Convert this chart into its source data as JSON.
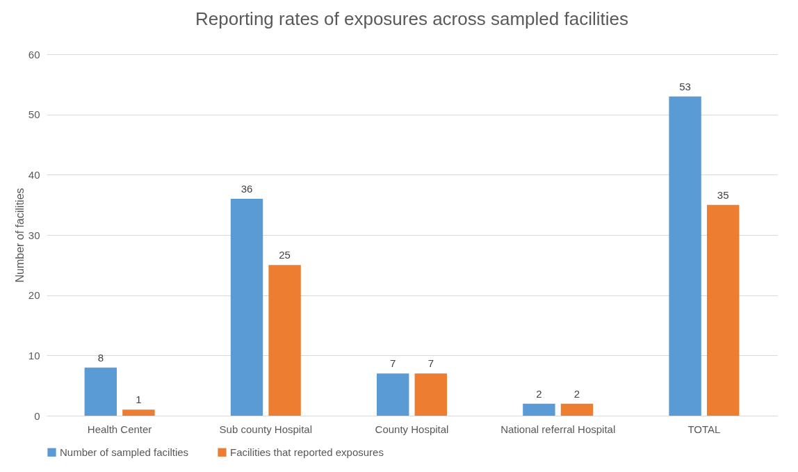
{
  "chart_data": {
    "type": "bar",
    "title": "Reporting rates of exposures across sampled facilities",
    "ylabel": "Number  of facilities",
    "categories": [
      "Health Center",
      "Sub county Hospital",
      "County  Hospital",
      "National referral Hospital",
      "TOTAL"
    ],
    "series": [
      {
        "name": "Number of sampled facilties",
        "color": "#5b9bd5",
        "values": [
          8,
          36,
          7,
          2,
          53
        ]
      },
      {
        "name": "Facilities that reported exposures",
        "color": "#ed7d31",
        "values": [
          1,
          25,
          7,
          2,
          35
        ]
      }
    ],
    "ylim": [
      0,
      60
    ],
    "yticks": [
      0,
      10,
      20,
      30,
      40,
      50,
      60
    ],
    "grid": "y",
    "legend": "bottom",
    "data_labels": true
  }
}
